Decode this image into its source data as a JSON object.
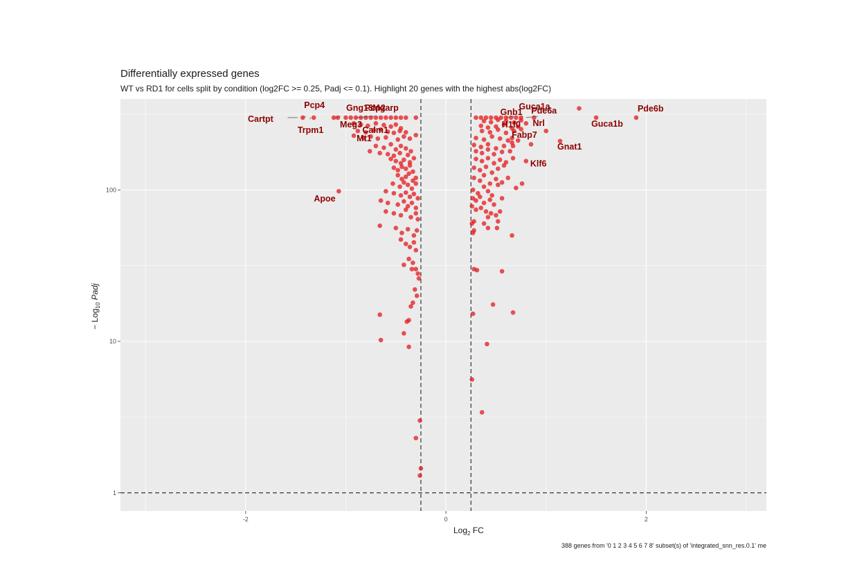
{
  "chart_data": {
    "type": "scatter",
    "title": "Differentially expressed genes",
    "subtitle": "WT vs RD1 for cells split by condition (log2FC >= 0.25, Padj <= 0.1). Highlight 20 genes with the highest abs(log2FC)",
    "xlabel_main": "Log",
    "xlabel_sub": "2",
    "xlabel_rest": " FC",
    "ylabel_prefix": "− Log",
    "ylabel_sub": "10",
    "ylabel_italic": " Padj",
    "caption": "388 genes from '0 1 2 3 4 5 6 7 8' subset(s) of 'integrated_snn_res.0.1' me",
    "xlim": [
      -3.25,
      3.2
    ],
    "ylim_log10": [
      -0.12,
      2.6
    ],
    "x_ticks": [
      {
        "value": -2,
        "label": "-2"
      },
      {
        "value": 0,
        "label": "0"
      },
      {
        "value": 2,
        "label": "2"
      }
    ],
    "y_ticks": [
      {
        "value": 1,
        "label": "1"
      },
      {
        "value": 10,
        "label": "10"
      },
      {
        "value": 100,
        "label": "100"
      }
    ],
    "thresholds": {
      "log2fc": 0.25,
      "padj_line": 1
    },
    "grid": true,
    "point_color": "#e41a1c",
    "label_color": "#8b0000",
    "panel_bg": "#ebebeb",
    "points": [
      [
        -1.43,
        300
      ],
      [
        -1.32,
        300
      ],
      [
        -1.12,
        300
      ],
      [
        -1.08,
        300
      ],
      [
        -1.0,
        300
      ],
      [
        -0.95,
        300
      ],
      [
        -0.9,
        300
      ],
      [
        -0.85,
        300
      ],
      [
        -0.8,
        300
      ],
      [
        -0.75,
        300
      ],
      [
        -0.7,
        300
      ],
      [
        -0.65,
        300
      ],
      [
        -0.6,
        300
      ],
      [
        -0.55,
        300
      ],
      [
        -0.5,
        300
      ],
      [
        -0.45,
        300
      ],
      [
        -0.4,
        300
      ],
      [
        -0.3,
        300
      ],
      [
        -0.92,
        275
      ],
      [
        -0.85,
        270
      ],
      [
        -0.78,
        265
      ],
      [
        -0.7,
        275
      ],
      [
        -0.62,
        268
      ],
      [
        -0.55,
        262
      ],
      [
        -0.5,
        270
      ],
      [
        -0.45,
        255
      ],
      [
        -0.88,
        245
      ],
      [
        -0.8,
        240
      ],
      [
        -0.72,
        248
      ],
      [
        -0.65,
        250
      ],
      [
        -0.58,
        242
      ],
      [
        -0.52,
        238
      ],
      [
        -0.46,
        245
      ],
      [
        -0.4,
        240
      ],
      [
        -0.92,
        228
      ],
      [
        -0.82,
        220
      ],
      [
        -0.75,
        225
      ],
      [
        -0.68,
        218
      ],
      [
        -0.6,
        222
      ],
      [
        -0.48,
        215
      ],
      [
        -0.42,
        225
      ],
      [
        -0.36,
        218
      ],
      [
        -0.3,
        230
      ],
      [
        -0.7,
        195
      ],
      [
        -0.62,
        190
      ],
      [
        -0.55,
        200
      ],
      [
        -0.5,
        185
      ],
      [
        -0.45,
        195
      ],
      [
        -0.4,
        188
      ],
      [
        -0.35,
        180
      ],
      [
        -0.76,
        180
      ],
      [
        -0.66,
        175
      ],
      [
        -0.58,
        172
      ],
      [
        -0.52,
        168
      ],
      [
        -0.46,
        175
      ],
      [
        -0.38,
        170
      ],
      [
        -0.55,
        160
      ],
      [
        -0.5,
        155
      ],
      [
        -0.45,
        150
      ],
      [
        -0.42,
        158
      ],
      [
        -0.36,
        152
      ],
      [
        -0.32,
        162
      ],
      [
        -0.52,
        140
      ],
      [
        -0.48,
        135
      ],
      [
        -0.44,
        142
      ],
      [
        -0.4,
        138
      ],
      [
        -0.36,
        145
      ],
      [
        -0.33,
        132
      ],
      [
        -0.48,
        125
      ],
      [
        -0.44,
        118
      ],
      [
        -0.4,
        122
      ],
      [
        -0.37,
        128
      ],
      [
        -0.33,
        115
      ],
      [
        -0.3,
        120
      ],
      [
        -0.53,
        110
      ],
      [
        -0.46,
        105
      ],
      [
        -0.42,
        112
      ],
      [
        -0.38,
        108
      ],
      [
        -0.34,
        102
      ],
      [
        -0.3,
        110
      ],
      [
        -0.6,
        98
      ],
      [
        -0.52,
        95
      ],
      [
        -0.45,
        92
      ],
      [
        -0.4,
        96
      ],
      [
        -0.36,
        90
      ],
      [
        -0.32,
        94
      ],
      [
        -0.28,
        88
      ],
      [
        -0.65,
        85
      ],
      [
        -0.58,
        82
      ],
      [
        -0.48,
        80
      ],
      [
        -0.42,
        84
      ],
      [
        -0.38,
        78
      ],
      [
        -0.34,
        82
      ],
      [
        -0.3,
        76
      ],
      [
        -0.6,
        72
      ],
      [
        -0.52,
        70
      ],
      [
        -0.45,
        68
      ],
      [
        -0.4,
        74
      ],
      [
        -0.35,
        66
      ],
      [
        -0.3,
        70
      ],
      [
        -0.28,
        64
      ],
      [
        -0.66,
        58
      ],
      [
        -0.5,
        56
      ],
      [
        -0.44,
        52
      ],
      [
        -0.38,
        55
      ],
      [
        -0.32,
        50
      ],
      [
        -0.29,
        54
      ],
      [
        -0.45,
        47
      ],
      [
        -0.4,
        44
      ],
      [
        -0.36,
        42
      ],
      [
        -0.32,
        45
      ],
      [
        -0.3,
        40
      ],
      [
        -0.37,
        35
      ],
      [
        -0.33,
        33
      ],
      [
        -0.3,
        30
      ],
      [
        -0.28,
        28
      ],
      [
        -0.34,
        30
      ],
      [
        -0.27,
        26
      ],
      [
        -0.42,
        32
      ],
      [
        -0.31,
        22
      ],
      [
        -0.29,
        20
      ],
      [
        -0.33,
        18
      ],
      [
        -0.35,
        17
      ],
      [
        -0.66,
        15
      ],
      [
        -0.39,
        13.5
      ],
      [
        -0.42,
        11.3
      ],
      [
        -0.37,
        13.8
      ],
      [
        -0.65,
        10.2
      ],
      [
        -0.37,
        9.2
      ],
      [
        -0.26,
        3.0
      ],
      [
        -0.3,
        2.3
      ],
      [
        -0.25,
        1.45
      ],
      [
        -0.26,
        1.3
      ],
      [
        -1.07,
        98
      ],
      [
        0.3,
        300
      ],
      [
        0.35,
        300
      ],
      [
        0.4,
        300
      ],
      [
        0.45,
        300
      ],
      [
        0.5,
        300
      ],
      [
        0.55,
        300
      ],
      [
        0.6,
        300
      ],
      [
        0.65,
        300
      ],
      [
        0.7,
        300
      ],
      [
        0.75,
        300
      ],
      [
        0.88,
        300
      ],
      [
        0.38,
        285
      ],
      [
        0.45,
        280
      ],
      [
        0.52,
        290
      ],
      [
        0.6,
        285
      ],
      [
        0.68,
        278
      ],
      [
        0.75,
        288
      ],
      [
        0.35,
        265
      ],
      [
        0.42,
        258
      ],
      [
        0.5,
        262
      ],
      [
        0.58,
        270
      ],
      [
        0.66,
        255
      ],
      [
        0.72,
        262
      ],
      [
        0.8,
        275
      ],
      [
        0.36,
        245
      ],
      [
        0.44,
        240
      ],
      [
        0.52,
        250
      ],
      [
        0.6,
        238
      ],
      [
        0.68,
        245
      ],
      [
        0.75,
        252
      ],
      [
        1.0,
        245
      ],
      [
        0.3,
        220
      ],
      [
        0.38,
        215
      ],
      [
        0.46,
        225
      ],
      [
        0.54,
        218
      ],
      [
        0.62,
        212
      ],
      [
        0.66,
        220
      ],
      [
        0.72,
        212
      ],
      [
        0.28,
        198
      ],
      [
        0.35,
        192
      ],
      [
        0.42,
        200
      ],
      [
        0.5,
        188
      ],
      [
        0.58,
        195
      ],
      [
        0.66,
        205
      ],
      [
        0.85,
        200
      ],
      [
        0.3,
        180
      ],
      [
        0.36,
        175
      ],
      [
        0.42,
        185
      ],
      [
        0.48,
        172
      ],
      [
        0.56,
        178
      ],
      [
        0.64,
        180
      ],
      [
        0.67,
        195
      ],
      [
        1.14,
        210
      ],
      [
        0.3,
        160
      ],
      [
        0.36,
        155
      ],
      [
        0.42,
        162
      ],
      [
        0.48,
        150
      ],
      [
        0.54,
        158
      ],
      [
        0.6,
        152
      ],
      [
        0.67,
        162
      ],
      [
        0.8,
        155
      ],
      [
        0.28,
        140
      ],
      [
        0.34,
        135
      ],
      [
        0.4,
        142
      ],
      [
        0.46,
        130
      ],
      [
        0.52,
        138
      ],
      [
        0.58,
        145
      ],
      [
        0.28,
        120
      ],
      [
        0.34,
        115
      ],
      [
        0.38,
        125
      ],
      [
        0.44,
        110
      ],
      [
        0.5,
        118
      ],
      [
        0.56,
        112
      ],
      [
        0.62,
        120
      ],
      [
        0.27,
        100
      ],
      [
        0.32,
        95
      ],
      [
        0.38,
        105
      ],
      [
        0.42,
        98
      ],
      [
        0.46,
        92
      ],
      [
        0.52,
        108
      ],
      [
        0.7,
        103
      ],
      [
        0.76,
        110
      ],
      [
        0.27,
        88
      ],
      [
        0.3,
        85
      ],
      [
        0.34,
        90
      ],
      [
        0.38,
        82
      ],
      [
        0.44,
        86
      ],
      [
        0.48,
        80
      ],
      [
        0.56,
        88
      ],
      [
        0.26,
        78
      ],
      [
        0.3,
        74
      ],
      [
        0.35,
        76
      ],
      [
        0.4,
        72
      ],
      [
        0.45,
        70
      ],
      [
        0.5,
        68
      ],
      [
        0.54,
        72
      ],
      [
        0.28,
        62
      ],
      [
        0.38,
        60
      ],
      [
        0.42,
        66
      ],
      [
        0.52,
        62
      ],
      [
        0.26,
        60
      ],
      [
        0.28,
        54
      ],
      [
        0.27,
        52
      ],
      [
        0.42,
        56
      ],
      [
        0.51,
        56
      ],
      [
        0.66,
        50
      ],
      [
        0.28,
        30
      ],
      [
        0.31,
        29.5
      ],
      [
        0.56,
        29
      ],
      [
        0.47,
        17.5
      ],
      [
        0.67,
        15.5
      ],
      [
        0.27,
        15.2
      ],
      [
        0.41,
        9.6
      ],
      [
        0.26,
        5.6
      ],
      [
        0.36,
        3.4
      ],
      [
        1.5,
        300
      ],
      [
        1.9,
        300
      ],
      [
        1.33,
        345
      ]
    ],
    "labels": [
      {
        "gene": "Pcp4",
        "x": -1.43,
        "y": 300
      },
      {
        "gene": "Gng13",
        "x": -1.1,
        "y": 300
      },
      {
        "gene": "Pcp2",
        "x": -0.9,
        "y": 300
      },
      {
        "gene": "Mgarp",
        "x": -0.78,
        "y": 300
      },
      {
        "gene": "Cartpt",
        "x": -1.48,
        "y": 300
      },
      {
        "gene": "Meg3",
        "x": -0.92,
        "y": 300
      },
      {
        "gene": "Calm1",
        "x": -0.8,
        "y": 270
      },
      {
        "gene": "Trpm1",
        "x": -1.35,
        "y": 300
      },
      {
        "gene": "Mt1",
        "x": -0.85,
        "y": 228
      },
      {
        "gene": "Apoe",
        "x": -1.07,
        "y": 98
      },
      {
        "gene": "Gnb1",
        "x": 0.55,
        "y": 300
      },
      {
        "gene": "Guca1a",
        "x": 0.68,
        "y": 300
      },
      {
        "gene": "Pde6a",
        "x": 0.88,
        "y": 300
      },
      {
        "gene": "Pde6b",
        "x": 1.9,
        "y": 300
      },
      {
        "gene": "H1f0",
        "x": 0.62,
        "y": 300
      },
      {
        "gene": "Nrl",
        "x": 0.95,
        "y": 300
      },
      {
        "gene": "Guca1b",
        "x": 1.5,
        "y": 300
      },
      {
        "gene": "Fabp7",
        "x": 0.85,
        "y": 245
      },
      {
        "gene": "Gnat1",
        "x": 1.14,
        "y": 210
      },
      {
        "gene": "Klf6",
        "x": 0.8,
        "y": 155
      }
    ]
  }
}
